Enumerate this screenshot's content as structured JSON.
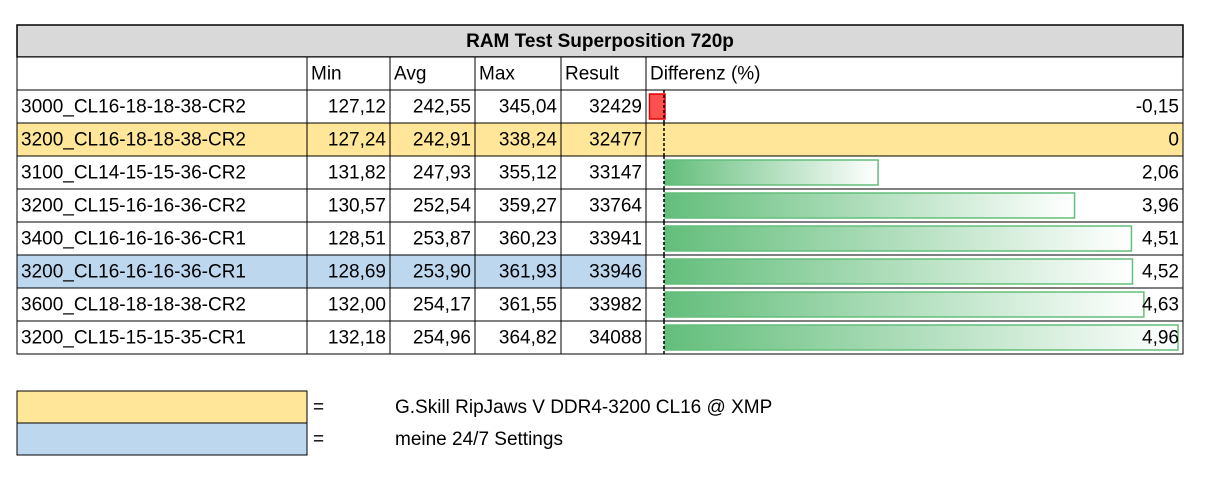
{
  "title": "RAM Test Superposition 720p",
  "table": {
    "header": [
      "Min",
      "Avg",
      "Max",
      "Result",
      "Differenz (%)"
    ],
    "rows": [
      {
        "cells": [
          "3000_CL16-18-18-38-CR2",
          "127,12",
          "242,55",
          "345,04",
          "32429",
          "-0,15"
        ]
      },
      {
        "cells": [
          "3200_CL16-18-18-38-CR2",
          "127,24",
          "242,91",
          "338,24",
          "32477",
          "0"
        ],
        "color": "#ffe699"
      },
      {
        "cells": [
          "3100_CL14-15-15-36-CR2",
          "131,82",
          "247,93",
          "355,12",
          "33147",
          "2,06"
        ]
      },
      {
        "cells": [
          "3200_CL15-16-16-36-CR2",
          "130,57",
          "252,54",
          "359,27",
          "33764",
          "3,96"
        ]
      },
      {
        "cells": [
          "3400_CL16-16-16-36-CR1",
          "128,51",
          "253,87",
          "360,23",
          "33941",
          "4,51"
        ]
      },
      {
        "cells": [
          "3200_CL16-16-16-36-CR1",
          "128,69",
          "253,90",
          "361,93",
          "33946",
          "4,52"
        ],
        "color": "#bdd7ee"
      },
      {
        "cells": [
          "3600_CL18-18-18-38-CR2",
          "132,00",
          "254,17",
          "361,55",
          "33982",
          "4,63"
        ]
      },
      {
        "cells": [
          "3200_CL15-15-15-35-CR1",
          "132,18",
          "254,96",
          "364,82",
          "34088",
          "4,96"
        ]
      }
    ]
  },
  "legend": [
    {
      "color": "#ffe699",
      "symbol": "=",
      "text": "G.Skill RipJaws V DDR4-3200 CL16 @ XMP"
    },
    {
      "color": "#bdd7ee",
      "symbol": "=",
      "text": "meine 24/7 Settings"
    }
  ]
}
